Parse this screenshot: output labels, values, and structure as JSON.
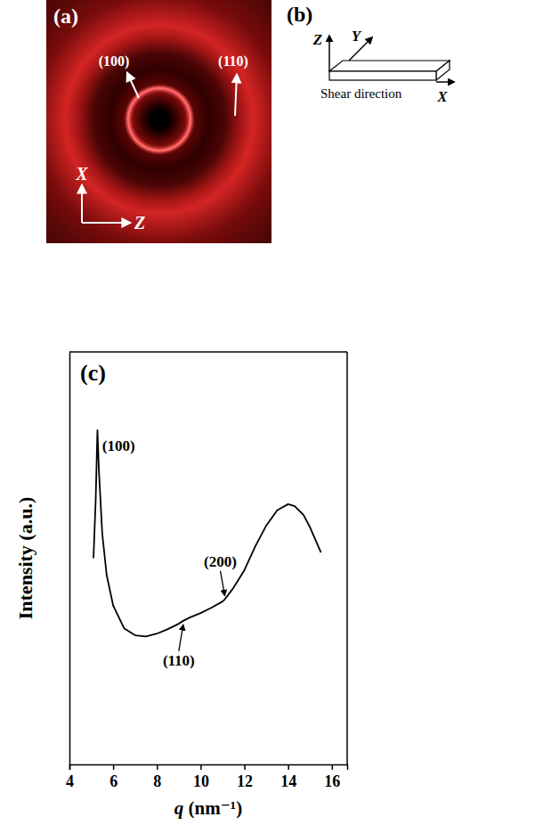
{
  "pattern": {
    "label": "(a)",
    "reflections": [
      "(100)",
      "(110)"
    ],
    "axes": [
      "X",
      "Z"
    ]
  },
  "diagram": {
    "label": "(b)",
    "axes": [
      "Z",
      "Y",
      "X"
    ],
    "caption": "Shear direction"
  },
  "chart_data": {
    "type": "line",
    "title": "(c)",
    "x_label": "q (nm⁻¹)",
    "y_label": "Intensity (a.u.)",
    "x": [
      5.1,
      5.2,
      5.28,
      5.35,
      5.5,
      5.7,
      6.0,
      6.5,
      7.0,
      7.5,
      8.0,
      8.5,
      9.0,
      9.2,
      9.5,
      10.0,
      10.5,
      11.0,
      11.1,
      11.5,
      12.0,
      12.5,
      13.0,
      13.5,
      14.0,
      14.3,
      14.7,
      15.0,
      15.5
    ],
    "values": [
      50,
      64,
      81,
      71,
      56,
      46,
      38.5,
      33,
      31.3,
      31,
      31.7,
      32.8,
      34.1,
      34.8,
      35.6,
      36.7,
      38,
      39.5,
      40,
      42.8,
      47.1,
      52.9,
      57.9,
      61.6,
      63.1,
      62.6,
      60.5,
      57.5,
      51.4
    ],
    "color": "#000000",
    "xlim": [
      4,
      16.7
    ],
    "xticks": [
      4,
      6,
      8,
      10,
      12,
      14,
      16
    ],
    "ylim": [
      0,
      100
    ],
    "tick_labels": "x",
    "grid": false,
    "annotations": [
      {
        "text": "(100)",
        "x": 5.5,
        "y": 76
      },
      {
        "text": "(110)",
        "x": 9.0,
        "y": 24,
        "arrow_x": 9.2,
        "arrow_y": 33.8
      },
      {
        "text": "(200)",
        "x": 10.9,
        "y": 48,
        "arrow_x": 11.1,
        "arrow_y": 41
      }
    ]
  }
}
